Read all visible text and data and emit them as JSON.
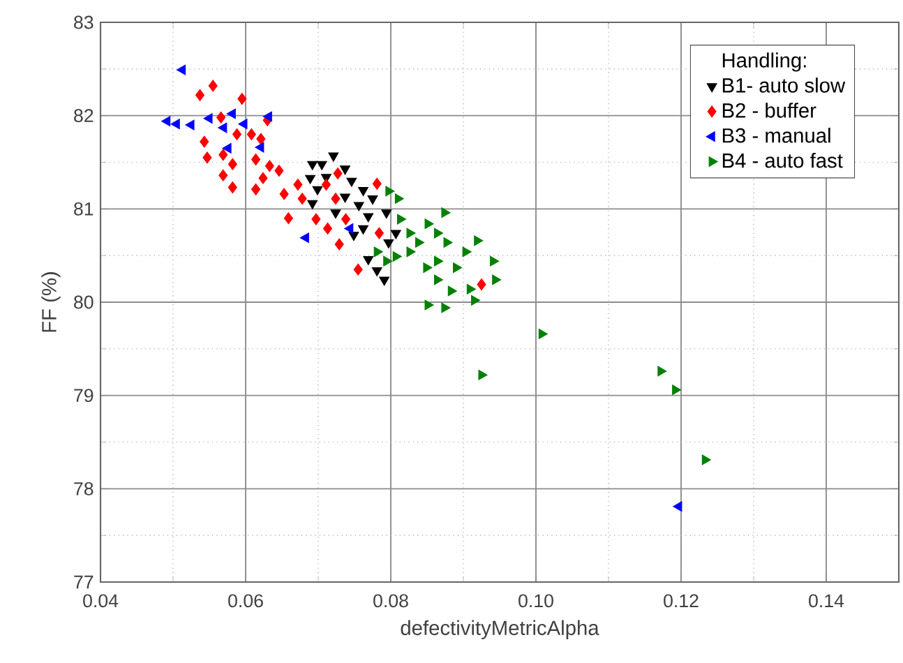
{
  "chart_data": {
    "type": "scatter",
    "xlabel": "defectivityMetricAlpha",
    "ylabel": "FF (%)",
    "legend_title": "Handling:",
    "xlim": [
      0.04,
      0.15
    ],
    "xticks": [
      {
        "value": 0.04,
        "label": "0.04"
      },
      {
        "value": 0.06,
        "label": "0.06"
      },
      {
        "value": 0.08,
        "label": "0.08"
      },
      {
        "value": 0.1,
        "label": "0.10"
      },
      {
        "value": 0.12,
        "label": "0.12"
      },
      {
        "value": 0.14,
        "label": "0.14"
      }
    ],
    "ylim": [
      77,
      83
    ],
    "yticks": [
      77,
      78,
      79,
      80,
      81,
      82,
      83
    ],
    "grid": true,
    "legend": "top right",
    "series": [
      {
        "name": "B1- auto slow",
        "color": "#000000",
        "marker": "triangle-down",
        "x": [
          0.0721,
          0.0692,
          0.0705,
          0.0737,
          0.0689,
          0.0711,
          0.0746,
          0.0699,
          0.0762,
          0.0692,
          0.0737,
          0.0756,
          0.0775,
          0.0769,
          0.0794,
          0.0724,
          0.0762,
          0.0749,
          0.0797,
          0.0769,
          0.0791,
          0.0781,
          0.0807
        ],
        "values": [
          81.57,
          81.48,
          81.48,
          81.43,
          81.33,
          81.34,
          81.3,
          81.21,
          81.2,
          81.06,
          81.13,
          81.04,
          81.11,
          80.92,
          80.96,
          80.96,
          80.79,
          80.72,
          80.64,
          80.46,
          80.24,
          80.34,
          80.74
        ]
      },
      {
        "name": "B2 - buffer",
        "color": "#ff0000",
        "marker": "diamond",
        "x": [
          0.0555,
          0.0537,
          0.0595,
          0.0566,
          0.063,
          0.0543,
          0.0547,
          0.0569,
          0.0582,
          0.0588,
          0.0608,
          0.0621,
          0.0614,
          0.0633,
          0.0646,
          0.0624,
          0.0614,
          0.0582,
          0.0653,
          0.0672,
          0.0678,
          0.0727,
          0.0711,
          0.0724,
          0.0781,
          0.0659,
          0.0697,
          0.0713,
          0.0738,
          0.0729,
          0.0784,
          0.0755,
          0.0925,
          0.0569
        ],
        "values": [
          82.32,
          82.22,
          82.18,
          81.98,
          81.95,
          81.72,
          81.55,
          81.58,
          81.48,
          81.8,
          81.8,
          81.75,
          81.53,
          81.46,
          81.41,
          81.33,
          81.21,
          81.23,
          81.16,
          81.26,
          81.11,
          81.38,
          81.26,
          81.11,
          81.27,
          80.9,
          80.89,
          80.79,
          80.89,
          80.62,
          80.74,
          80.35,
          80.19,
          81.36
        ]
      },
      {
        "name": "B3 - manual",
        "color": "#0000ff",
        "marker": "triangle-left",
        "x": [
          0.0513,
          0.0492,
          0.0505,
          0.0525,
          0.055,
          0.057,
          0.0582,
          0.0598,
          0.0632,
          0.0576,
          0.0621,
          0.0683,
          0.0744,
          0.1197
        ],
        "values": [
          82.49,
          81.94,
          81.91,
          81.9,
          81.97,
          81.87,
          82.02,
          81.91,
          81.99,
          81.65,
          81.66,
          80.69,
          80.79,
          77.81
        ]
      },
      {
        "name": "B4 - auto fast",
        "color": "#008000",
        "marker": "triangle-right",
        "x": [
          0.0797,
          0.081,
          0.0874,
          0.0813,
          0.0826,
          0.0851,
          0.0864,
          0.0838,
          0.0781,
          0.0807,
          0.0826,
          0.0877,
          0.0919,
          0.0903,
          0.0864,
          0.0849,
          0.089,
          0.0941,
          0.0944,
          0.0864,
          0.0883,
          0.0909,
          0.0851,
          0.0874,
          0.0915,
          0.0794,
          0.0925,
          0.1008,
          0.1172,
          0.1192,
          0.1233
        ],
        "values": [
          81.19,
          81.11,
          80.96,
          80.89,
          80.74,
          80.84,
          80.74,
          80.64,
          80.54,
          80.49,
          80.54,
          80.64,
          80.66,
          80.54,
          80.44,
          80.37,
          80.37,
          80.44,
          80.24,
          80.24,
          80.12,
          80.14,
          79.97,
          79.94,
          80.02,
          80.44,
          79.22,
          79.66,
          79.26,
          79.06,
          78.31
        ]
      }
    ]
  }
}
